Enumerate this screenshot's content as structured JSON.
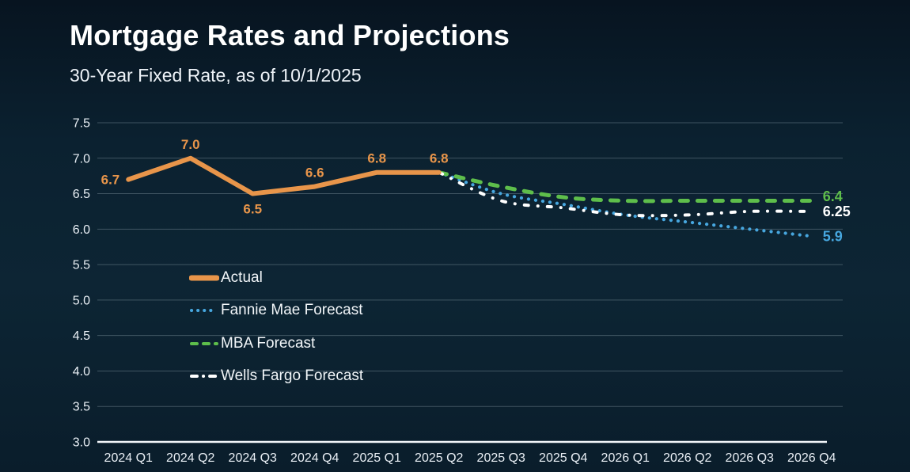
{
  "page": {
    "title": "Mortgage Rates and Projections",
    "subtitle": "30-Year Fixed Rate, as of 10/1/2025"
  },
  "chart_data": {
    "type": "line",
    "title": "Mortgage Rates and Projections",
    "subtitle": "30-Year Fixed Rate, as of 10/1/2025",
    "categories": [
      "2024 Q1",
      "2024 Q2",
      "2024 Q3",
      "2024 Q4",
      "2025 Q1",
      "2025 Q2",
      "2025 Q3",
      "2025 Q4",
      "2026 Q1",
      "2026 Q2",
      "2026 Q3",
      "2026 Q4"
    ],
    "ylim": [
      3.0,
      7.5
    ],
    "ytick_labels": [
      "7.5",
      "7.0",
      "6.5",
      "6.0",
      "5.5",
      "5.0",
      "4.5",
      "4.0",
      "3.5",
      "3.0"
    ],
    "grid": true,
    "legend_position": "inside-left",
    "colors": {
      "actual": "#E8954A",
      "fannie_mae": "#47A7DF",
      "mba": "#5EBE4B",
      "wells_fargo": "#FFFFFF",
      "background_top": "#071420",
      "background_mid": "#0d2534",
      "text": "#FFFFFF"
    },
    "series": [
      {
        "name": "Actual",
        "style": "solid",
        "color": "#E8954A",
        "start_index": 0,
        "values": [
          6.7,
          7.0,
          6.5,
          6.6,
          6.8,
          6.8
        ],
        "point_labels": [
          "6.7",
          "7.0",
          "6.5",
          "6.6",
          "6.8",
          "6.8"
        ],
        "point_label_positions": [
          "left",
          "above",
          "below",
          "above",
          "above",
          "above"
        ]
      },
      {
        "name": "Fannie Mae Forecast",
        "style": "dotted",
        "color": "#47A7DF",
        "start_index": 5,
        "values": [
          6.8,
          6.5,
          6.35,
          6.2,
          6.1,
          6.0,
          5.9
        ],
        "end_label": "5.9"
      },
      {
        "name": "MBA Forecast",
        "style": "dashed",
        "color": "#5EBE4B",
        "start_index": 5,
        "values": [
          6.8,
          6.6,
          6.45,
          6.4,
          6.4,
          6.4,
          6.4
        ],
        "end_label": "6.4"
      },
      {
        "name": "Wells Fargo Forecast",
        "style": "dashdot",
        "color": "#FFFFFF",
        "start_index": 5,
        "values": [
          6.8,
          6.4,
          6.3,
          6.2,
          6.2,
          6.25,
          6.25
        ],
        "end_label": "6.25"
      }
    ]
  }
}
